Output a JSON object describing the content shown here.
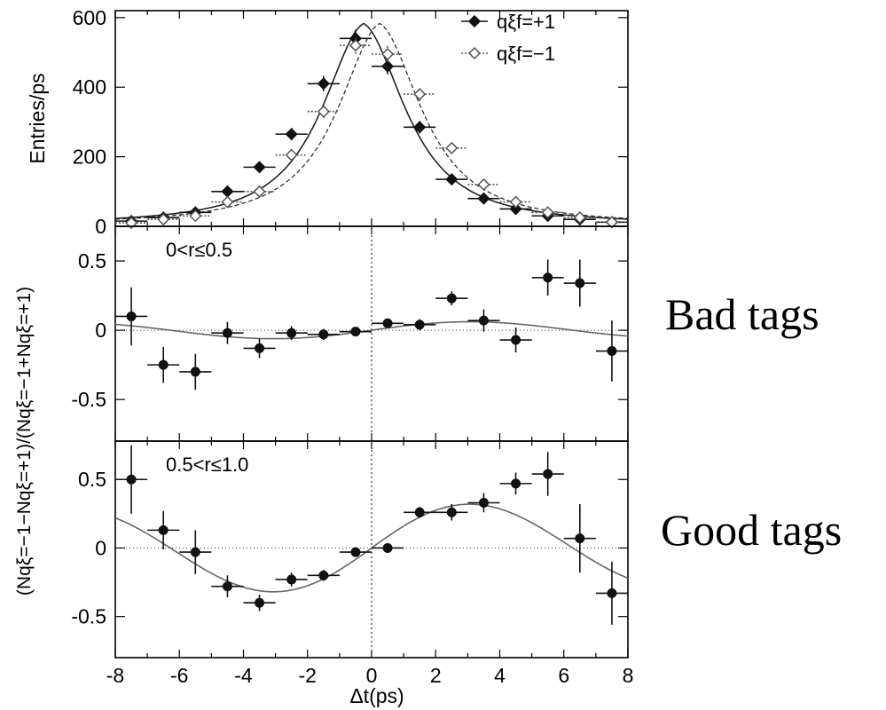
{
  "chart_data": [
    {
      "type": "scatter",
      "panel": "top",
      "ylabel": "Entries/ps",
      "xlim": [
        -8,
        8
      ],
      "ylim": [
        0,
        620
      ],
      "yticks": [
        "0",
        "200",
        "400",
        "600"
      ],
      "xerr": 0.5,
      "legend": {
        "placement": "top-right"
      },
      "series": [
        {
          "name": "qξf=+1",
          "marker": "filled-diamond",
          "line": "solid",
          "x": [
            -7.5,
            -6.5,
            -5.5,
            -4.5,
            -3.5,
            -2.5,
            -1.5,
            -0.5,
            0.5,
            1.5,
            2.5,
            3.5,
            4.5,
            5.5,
            6.5,
            7.5
          ],
          "y": [
            15,
            25,
            40,
            100,
            170,
            265,
            410,
            540,
            460,
            285,
            135,
            80,
            50,
            30,
            20,
            12
          ],
          "yerr": [
            5,
            6,
            8,
            12,
            15,
            18,
            22,
            25,
            23,
            18,
            13,
            10,
            8,
            6,
            5,
            4
          ]
        },
        {
          "name": "qξf=−1",
          "marker": "open-diamond",
          "line": "dashed",
          "x": [
            -7.5,
            -6.5,
            -5.5,
            -4.5,
            -3.5,
            -2.5,
            -1.5,
            -0.5,
            0.5,
            1.5,
            2.5,
            3.5,
            4.5,
            5.5,
            6.5,
            7.5
          ],
          "y": [
            10,
            20,
            30,
            70,
            100,
            205,
            330,
            520,
            495,
            380,
            225,
            120,
            70,
            40,
            25,
            12
          ],
          "yerr": [
            4,
            5,
            6,
            9,
            11,
            15,
            19,
            24,
            23,
            20,
            15,
            11,
            9,
            7,
            5,
            4
          ]
        }
      ],
      "fit_curves": [
        {
          "series": "qξf=+1",
          "style": "solid",
          "peak_x": -0.25,
          "peak_y": 575
        },
        {
          "series": "qξf=−1",
          "style": "dashed",
          "peak_x": 0.25,
          "peak_y": 575
        }
      ]
    },
    {
      "type": "scatter",
      "panel": "middle",
      "annotation": "0<r≤0.5",
      "ylabel": "(Nqξ=−1−Nqξ=+1)/(Nqξ=−1+Nqξ=+1)",
      "xlim": [
        -8,
        8
      ],
      "ylim": [
        -0.8,
        0.75
      ],
      "yticks": [
        "-0.5",
        "0",
        "0.5"
      ],
      "xerr": 0.5,
      "x": [
        -7.5,
        -6.5,
        -5.5,
        -4.5,
        -3.5,
        -2.5,
        -1.5,
        -0.5,
        0.5,
        1.5,
        2.5,
        3.5,
        4.5,
        5.5,
        6.5,
        7.5
      ],
      "y": [
        0.1,
        -0.25,
        -0.3,
        -0.02,
        -0.13,
        -0.02,
        -0.03,
        -0.01,
        0.05,
        0.04,
        0.23,
        0.07,
        -0.07,
        0.38,
        0.34,
        -0.15
      ],
      "yerr": [
        0.21,
        0.13,
        0.13,
        0.08,
        0.07,
        0.05,
        0.04,
        0.03,
        0.03,
        0.04,
        0.05,
        0.08,
        0.09,
        0.13,
        0.17,
        0.22
      ],
      "fit_curve": {
        "amplitude": 0.065,
        "frequency": 0.5,
        "style": "solid"
      },
      "reference_line": {
        "y": 0,
        "style": "dotted"
      },
      "vertical_line": {
        "x": 0,
        "style": "dotted"
      }
    },
    {
      "type": "scatter",
      "panel": "bottom",
      "annotation": "0.5<r≤1.0",
      "xlabel": "Δt(ps)",
      "xlim": [
        -8,
        8
      ],
      "ylim": [
        -0.8,
        0.78
      ],
      "xticks": [
        "-8",
        "-6",
        "-4",
        "-2",
        "0",
        "2",
        "4",
        "6",
        "8"
      ],
      "yticks": [
        "-0.5",
        "0",
        "0.5"
      ],
      "xerr": 0.5,
      "x": [
        -7.5,
        -6.5,
        -5.5,
        -4.5,
        -3.5,
        -2.5,
        -1.5,
        -0.5,
        0.5,
        1.5,
        2.5,
        3.5,
        4.5,
        5.5,
        6.5,
        7.5
      ],
      "y": [
        0.5,
        0.13,
        -0.03,
        -0.28,
        -0.4,
        -0.23,
        -0.2,
        -0.03,
        0.0,
        0.26,
        0.26,
        0.33,
        0.47,
        0.54,
        0.07,
        -0.33
      ],
      "yerr": [
        0.25,
        0.14,
        0.16,
        0.08,
        0.06,
        0.05,
        0.04,
        0.03,
        0.03,
        0.04,
        0.06,
        0.07,
        0.08,
        0.16,
        0.25,
        0.23
      ],
      "fit_curve": {
        "amplitude": 0.34,
        "frequency": 0.5,
        "style": "solid"
      },
      "reference_line": {
        "y": 0,
        "style": "dotted"
      },
      "vertical_line": {
        "x": 0,
        "style": "dotted"
      }
    }
  ],
  "side_labels": {
    "bad": "Bad tags",
    "good": "Good tags"
  },
  "colors": {
    "filled_marker": "#111111",
    "open_marker": "#555555",
    "fit_line": "#666666",
    "axis": "#000000"
  }
}
